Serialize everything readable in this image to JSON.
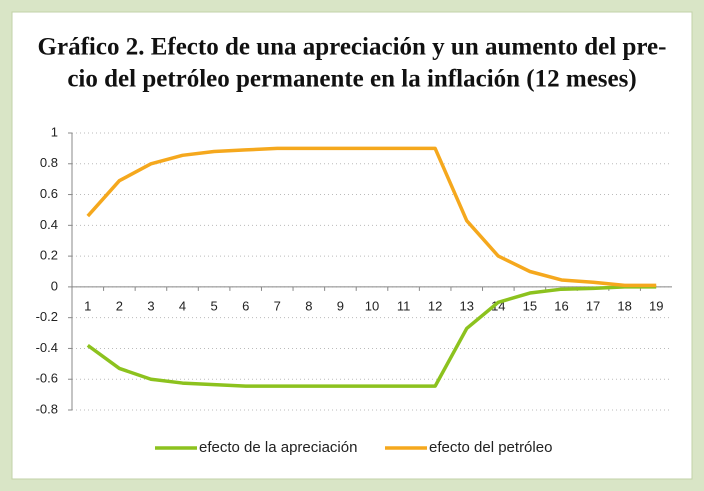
{
  "chart_data": {
    "type": "line",
    "title": [
      "Gráfico 2. Efecto de una apreciación y un aumento del pre-",
      "cio del petróleo permanente en la inflación (12 meses)"
    ],
    "categories": [
      "1",
      "2",
      "3",
      "4",
      "5",
      "6",
      "7",
      "8",
      "9",
      "10",
      "11",
      "12",
      "13",
      "14",
      "15",
      "16",
      "17",
      "18",
      "19"
    ],
    "series": [
      {
        "name": "efecto de la apreciación",
        "color": "#8cc21e",
        "values": [
          -0.38,
          -0.53,
          -0.6,
          -0.625,
          -0.635,
          -0.645,
          -0.645,
          -0.645,
          -0.645,
          -0.645,
          -0.645,
          -0.645,
          -0.27,
          -0.1,
          -0.04,
          -0.015,
          -0.01,
          0,
          0
        ]
      },
      {
        "name": "efecto del petróleo",
        "color": "#f5a81d",
        "values": [
          0.46,
          0.69,
          0.8,
          0.855,
          0.88,
          0.89,
          0.9,
          0.9,
          0.9,
          0.9,
          0.9,
          0.9,
          0.43,
          0.2,
          0.1,
          0.045,
          0.03,
          0.01,
          0.01
        ]
      }
    ],
    "ylim": [
      -0.8,
      1
    ],
    "yticks": [
      -0.8,
      -0.6,
      -0.4,
      -0.2,
      0,
      0.2,
      0.4,
      0.6,
      0.8,
      1
    ],
    "grid": true
  }
}
